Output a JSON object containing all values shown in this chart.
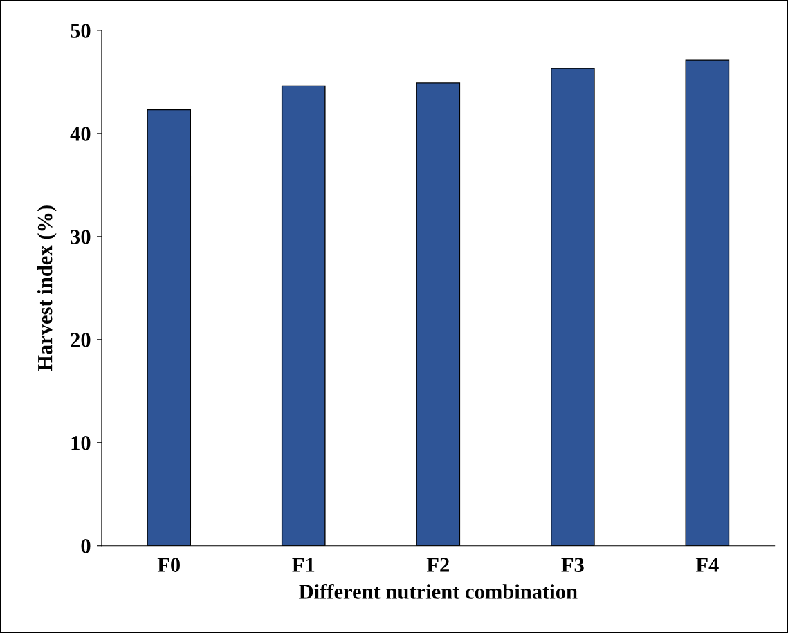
{
  "chart_data": {
    "type": "bar",
    "xlabel": "Different nutrient combination",
    "ylabel": "Harvest index (%)",
    "categories": [
      "F0",
      "F1",
      "F2",
      "F3",
      "F4"
    ],
    "values": [
      42.3,
      44.6,
      44.9,
      46.3,
      47.1
    ],
    "color": "#2f5597",
    "ylim": [
      0,
      50
    ],
    "yticks": [
      0,
      10,
      20,
      30,
      40,
      50
    ],
    "grid": false
  }
}
